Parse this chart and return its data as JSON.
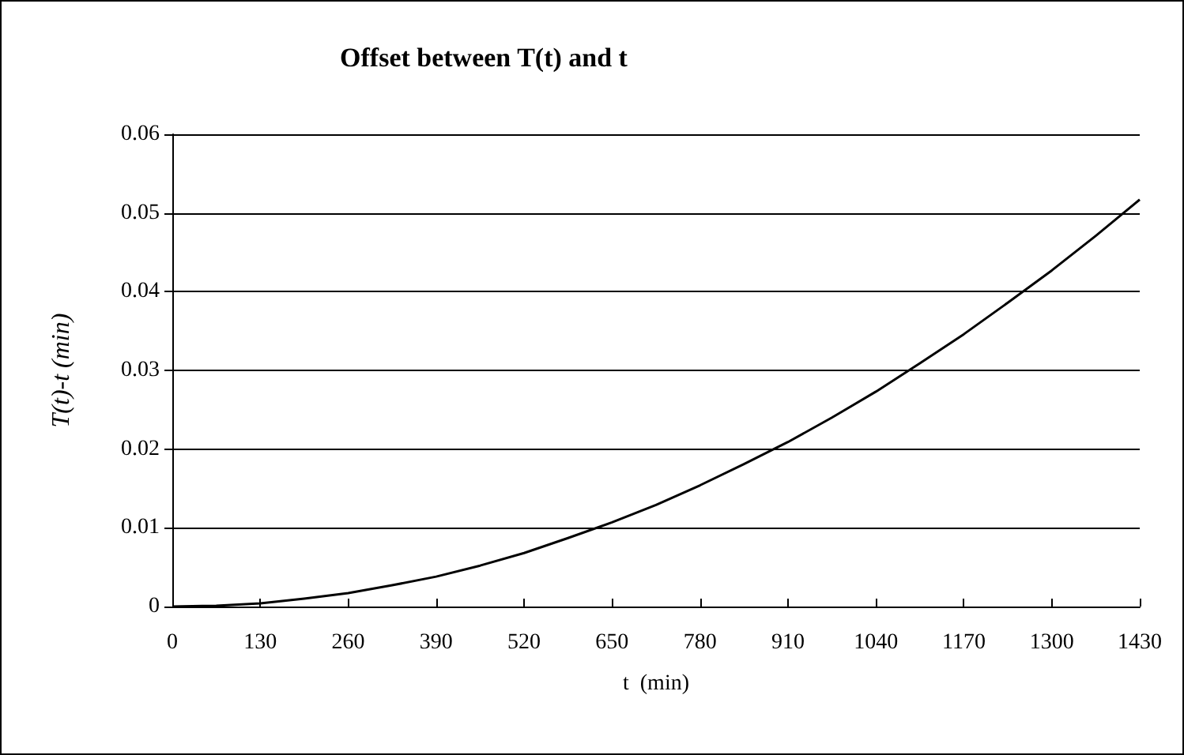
{
  "chart_data": {
    "type": "line",
    "title": "Offset between T(t) and t",
    "xlabel": "t  (min)",
    "ylabel": "T(t)-t (min)",
    "x": [
      0,
      65,
      130,
      195,
      260,
      325,
      390,
      455,
      520,
      585,
      650,
      715,
      780,
      845,
      910,
      975,
      1040,
      1105,
      1170,
      1235,
      1300,
      1365,
      1430
    ],
    "series": [
      {
        "color": "#000000",
        "values": [
          0,
          0.0001,
          0.0004,
          0.001,
          0.0017,
          0.0027,
          0.0038,
          0.0052,
          0.0068,
          0.0087,
          0.0107,
          0.0129,
          0.0154,
          0.0181,
          0.0209,
          0.024,
          0.0273,
          0.0309,
          0.0346,
          0.0386,
          0.0427,
          0.0471,
          0.0517
        ]
      }
    ],
    "xlim": [
      0,
      1430
    ],
    "xticks": [
      0,
      130,
      260,
      390,
      520,
      650,
      780,
      910,
      1040,
      1170,
      1300,
      1430
    ],
    "ylim": [
      0,
      0.06
    ],
    "yticks": [
      0,
      0.01,
      0.02,
      0.03,
      0.04,
      0.05,
      0.06
    ],
    "grid": "y",
    "marker": "none",
    "line_style": "solid"
  }
}
